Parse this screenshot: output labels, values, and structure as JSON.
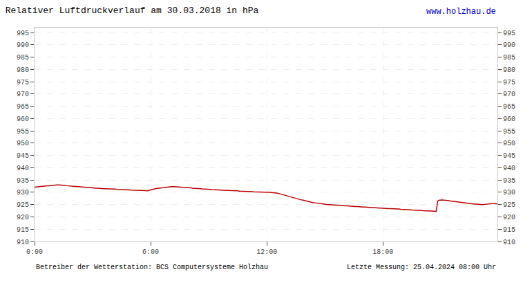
{
  "chart_data": {
    "type": "line",
    "title": "Relativer Luftdruckverlauf am 30.03.2018 in hPa",
    "annotations": [
      "www.holzhau.de",
      "Betreiber der Wetterstation: BCS Computersysteme Holzhau",
      "Letzte Messung: 25.04.2024 08:00 Uhr"
    ],
    "color": "#bb0000",
    "grid": true,
    "ylim": [
      910,
      997
    ],
    "yticks": [
      910,
      915,
      920,
      925,
      930,
      935,
      940,
      945,
      950,
      955,
      960,
      965,
      970,
      975,
      980,
      985,
      990,
      995
    ],
    "categories": [
      "0:00",
      null,
      null,
      null,
      null,
      null,
      null,
      null,
      null,
      null,
      null,
      null,
      null,
      null,
      null,
      null,
      null,
      null,
      null,
      null,
      null,
      null,
      null,
      null,
      null,
      null,
      null,
      null,
      null,
      null,
      null,
      null,
      null,
      null,
      null,
      null,
      null,
      null,
      null,
      null,
      null,
      null,
      null,
      null,
      null,
      null,
      null,
      null,
      null,
      null,
      null,
      null,
      null,
      null,
      null,
      null,
      null,
      null,
      null,
      null,
      null,
      null,
      null,
      null,
      null,
      null,
      null,
      null,
      null,
      null,
      null,
      null,
      "6:00",
      null,
      null,
      null,
      null,
      null,
      null,
      null,
      null,
      null,
      null,
      null,
      null,
      null,
      null,
      null,
      null,
      null,
      null,
      null,
      null,
      null,
      null,
      null,
      null,
      null,
      null,
      null,
      null,
      null,
      null,
      null,
      null,
      null,
      null,
      null,
      null,
      null,
      null,
      null,
      null,
      null,
      null,
      null,
      null,
      null,
      null,
      null,
      null,
      null,
      null,
      null,
      null,
      null,
      null,
      null,
      null,
      null,
      null,
      null,
      null,
      null,
      null,
      null,
      null,
      null,
      null,
      null,
      null,
      null,
      null,
      null,
      "12:00",
      null,
      null,
      null,
      null,
      null,
      null,
      null,
      null,
      null,
      null,
      null,
      null,
      null,
      null,
      null,
      null,
      null,
      null,
      null,
      null,
      null,
      null,
      null,
      null,
      null,
      null,
      null,
      null,
      null,
      null,
      null,
      null,
      null,
      null,
      null,
      null,
      null,
      null,
      null,
      null,
      null,
      null,
      null,
      null,
      null,
      null,
      null,
      null,
      null,
      null,
      null,
      null,
      null,
      null,
      null,
      null,
      null,
      null,
      null,
      null,
      null,
      null,
      null,
      null,
      null,
      null,
      null,
      null,
      null,
      null,
      null,
      "18:00",
      null,
      null,
      null,
      null,
      null,
      null,
      null,
      null,
      null,
      null,
      null,
      null,
      null,
      null,
      null,
      null,
      null,
      null,
      null,
      null,
      null,
      null,
      null,
      null,
      null,
      null,
      null,
      null,
      null,
      null,
      null,
      null,
      null,
      null,
      null,
      null,
      null,
      null,
      null,
      null,
      null,
      null,
      null,
      null,
      null,
      null,
      null,
      null,
      null,
      null,
      null,
      null,
      null,
      null,
      null,
      null,
      null,
      null,
      null,
      null,
      null,
      null,
      null,
      null,
      null,
      null,
      null,
      null,
      null,
      null,
      null
    ],
    "values": [
      932.1,
      932.2,
      932.3,
      932.4,
      932.5,
      932.5,
      932.6,
      932.6,
      932.7,
      932.7,
      932.8,
      932.8,
      932.9,
      932.9,
      933.0,
      933.0,
      933.0,
      933.0,
      932.9,
      932.8,
      932.7,
      932.6,
      932.6,
      932.5,
      932.5,
      932.4,
      932.4,
      932.3,
      932.2,
      932.2,
      932.1,
      932.1,
      932.0,
      932.0,
      931.9,
      931.9,
      931.8,
      931.8,
      931.7,
      931.7,
      931.6,
      931.6,
      931.6,
      931.5,
      931.5,
      931.5,
      931.4,
      931.4,
      931.3,
      931.3,
      931.3,
      931.2,
      931.2,
      931.2,
      931.1,
      931.1,
      931.0,
      931.0,
      931.0,
      931.0,
      930.9,
      930.9,
      930.9,
      930.8,
      930.8,
      930.8,
      930.7,
      930.7,
      930.7,
      930.7,
      930.6,
      930.7,
      931.0,
      931.2,
      931.4,
      931.5,
      931.6,
      931.7,
      931.8,
      931.9,
      932.0,
      932.1,
      932.2,
      932.2,
      932.3,
      932.3,
      932.3,
      932.3,
      932.2,
      932.2,
      932.1,
      932.1,
      932.0,
      932.0,
      931.9,
      931.9,
      931.8,
      931.8,
      931.7,
      931.7,
      931.6,
      931.6,
      931.5,
      931.5,
      931.4,
      931.4,
      931.3,
      931.3,
      931.2,
      931.2,
      931.1,
      931.1,
      931.0,
      931.0,
      931.0,
      930.9,
      930.9,
      930.8,
      930.8,
      930.8,
      930.7,
      930.7,
      930.7,
      930.7,
      930.6,
      930.6,
      930.6,
      930.5,
      930.5,
      930.5,
      930.4,
      930.4,
      930.4,
      930.3,
      930.3,
      930.3,
      930.2,
      930.2,
      930.2,
      930.2,
      930.1,
      930.1,
      930.1,
      930.1,
      930.0,
      930.0,
      930.0,
      929.9,
      929.9,
      929.8,
      929.7,
      929.6,
      929.4,
      929.3,
      929.1,
      928.9,
      928.8,
      928.6,
      928.4,
      928.2,
      928.0,
      927.8,
      927.6,
      927.4,
      927.2,
      927.0,
      926.9,
      926.7,
      926.5,
      926.4,
      926.2,
      926.1,
      925.9,
      925.8,
      925.7,
      925.6,
      925.5,
      925.4,
      925.3,
      925.2,
      925.1,
      925.1,
      925.0,
      925.0,
      924.9,
      924.9,
      924.8,
      924.8,
      924.8,
      924.7,
      924.7,
      924.6,
      924.6,
      924.5,
      924.5,
      924.4,
      924.4,
      924.3,
      924.3,
      924.2,
      924.2,
      924.1,
      924.1,
      924.1,
      924.0,
      924.0,
      923.9,
      923.9,
      923.9,
      923.8,
      923.8,
      923.7,
      923.7,
      923.7,
      923.6,
      923.6,
      923.5,
      923.5,
      923.4,
      923.4,
      923.4,
      923.4,
      923.3,
      923.3,
      923.3,
      923.2,
      923.2,
      923.1,
      923.1,
      923.1,
      923.0,
      923.0,
      922.9,
      922.9,
      922.8,
      922.8,
      922.8,
      922.7,
      922.7,
      922.6,
      922.6,
      922.5,
      922.5,
      922.5,
      922.4,
      922.4,
      922.3,
      922.3,
      922.3,
      922.2,
      926.5,
      926.8,
      926.9,
      926.9,
      926.8,
      926.8,
      926.7,
      926.6,
      926.5,
      926.4,
      926.3,
      926.2,
      926.1,
      926.0,
      925.9,
      925.8,
      925.7,
      925.6,
      925.5,
      925.4,
      925.4,
      925.3,
      925.3,
      925.2,
      925.2,
      925.1,
      925.1,
      925.0,
      925.0,
      925.1,
      925.2,
      925.2,
      925.3,
      925.3,
      925.4,
      925.4,
      925.4,
      925.3
    ]
  }
}
